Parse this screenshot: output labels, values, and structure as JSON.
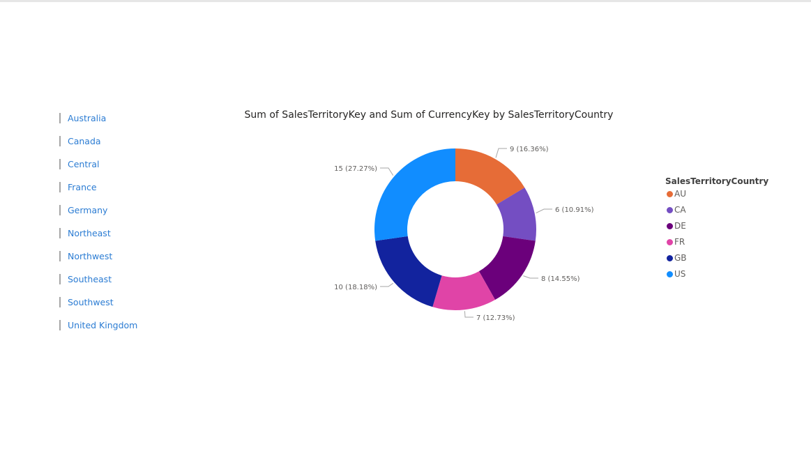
{
  "slicer": {
    "items": [
      "Australia",
      "Canada",
      "Central",
      "France",
      "Germany",
      "Northeast",
      "Northwest",
      "Southeast",
      "Southwest",
      "United Kingdom"
    ]
  },
  "chart_data": {
    "type": "pie",
    "donut": true,
    "title": "Sum of SalesTerritoryKey and Sum of CurrencyKey by SalesTerritoryCountry",
    "legend_title": "SalesTerritoryCountry",
    "legend_position": "right",
    "slices": [
      {
        "name": "AU",
        "value": 9,
        "label": "9 (16.36%)",
        "color": "#E66C37"
      },
      {
        "name": "CA",
        "value": 6,
        "label": "6 (10.91%)",
        "color": "#744EC2"
      },
      {
        "name": "DE",
        "value": 8,
        "label": "8 (14.55%)",
        "color": "#6B007B"
      },
      {
        "name": "FR",
        "value": 7,
        "label": "7 (12.73%)",
        "color": "#E044A7"
      },
      {
        "name": "GB",
        "value": 10,
        "label": "10 (18.18%)",
        "color": "#12239E"
      },
      {
        "name": "US",
        "value": 15,
        "label": "15 (27.27%)",
        "color": "#118DFF"
      }
    ]
  },
  "colors": {
    "slicer_text": "#2b7cd3",
    "slicer_bar": "#a6a6a6",
    "leader_line": "#a6a6a6",
    "data_label": "#605e5c"
  }
}
